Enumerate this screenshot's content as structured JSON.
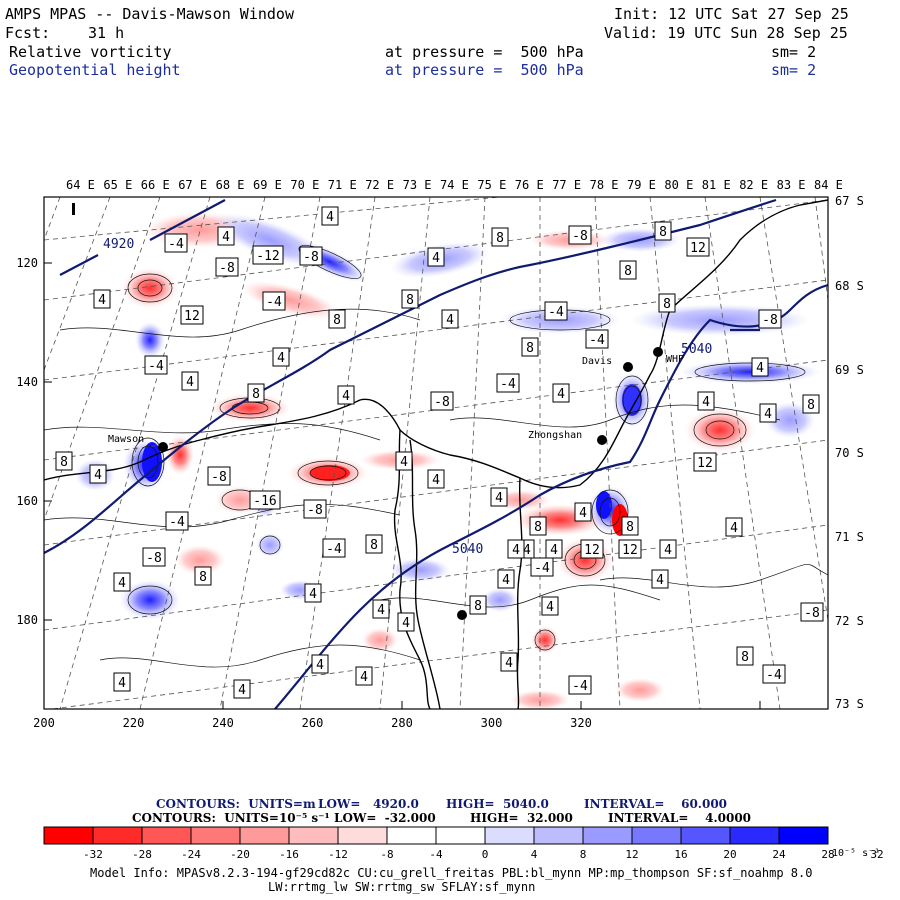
{
  "header": {
    "title": "AMPS MPAS -- Davis-Mawson Window",
    "fcst_label": "Fcst:",
    "fcst_value": "31 h",
    "init": "Init: 12 UTC Sat 27 Sep 25",
    "valid": "Valid: 19 UTC Sun 28 Sep 25",
    "field1": {
      "name": "Relative vorticity",
      "level": "at pressure =  500 hPa",
      "smooth": "sm= 2"
    },
    "field2": {
      "name": "Geopotential height",
      "level": "at pressure =  500 hPa",
      "smooth": "sm= 2"
    }
  },
  "map": {
    "top_lon_labels": [
      "64 E",
      "65 E",
      "66 E",
      "67 E",
      "68 E",
      "69 E",
      "70 E",
      "71 E",
      "72 E",
      "73 E",
      "74 E",
      "75 E",
      "76 E",
      "77 E",
      "78 E",
      "79 E",
      "80 E",
      "81 E",
      "82 E",
      "83 E",
      "84 E"
    ],
    "right_lat_labels": [
      "67 S",
      "68 S",
      "69 S",
      "70 S",
      "71 S",
      "72 S",
      "73 S"
    ],
    "bottom_x_labels": [
      "200",
      "220",
      "240",
      "260",
      "280",
      "300",
      "320"
    ],
    "left_y_labels": [
      "120",
      "140",
      "160",
      "180"
    ],
    "stations": [
      {
        "name": "Davis"
      },
      {
        "name": "Mawson"
      },
      {
        "name": "Zhongshan"
      },
      {
        "name": "WHP"
      }
    ],
    "height_labels": [
      "4920",
      "5040",
      "5040"
    ],
    "vort_labels": [
      "4",
      "-4",
      "4",
      "8",
      "-8",
      "8",
      "12",
      "-8",
      "-12",
      "-8",
      "4",
      "8",
      "4",
      "12",
      "-4",
      "8",
      "8",
      "4",
      "-4",
      "8",
      "-8",
      "-4",
      "4",
      "8",
      "4",
      "4",
      "-8",
      "-4",
      "8",
      "-4",
      "4",
      "4",
      "4",
      "8",
      "4",
      "8",
      "4",
      "-8",
      "-4",
      "-16",
      "-8",
      "4",
      "4",
      "4",
      "8",
      "4",
      "8",
      "-8",
      "8",
      "-4",
      "8",
      "4",
      "4",
      "4",
      "8",
      "4",
      "-4",
      "-4",
      "4",
      "4",
      "4",
      "4",
      "4",
      "4",
      "4",
      "4",
      "-4",
      "4",
      "-4",
      "8",
      "12",
      "-8",
      "4",
      "4",
      "12",
      "12",
      "4"
    ]
  },
  "legend": {
    "line1": {
      "contours": "CONTOURS:  UNITS=m",
      "low": "LOW=   4920.0",
      "high": "HIGH=  5040.0",
      "interval": "INTERVAL=    60.000"
    },
    "line2": {
      "contours": "CONTOURS:  UNITS=10⁻⁵ s⁻¹",
      "low": "LOW=  -32.000",
      "high": "HIGH=  32.000",
      "interval": "INTERVAL=    4.0000"
    },
    "scale_labels": [
      "-32",
      "-28",
      "-24",
      "-20",
      "-16",
      "-12",
      "-8",
      "-4",
      "0",
      "4",
      "8",
      "12",
      "16",
      "20",
      "24",
      "28",
      "32"
    ],
    "scale_unit": "10⁻⁵ s⁻¹",
    "colors": [
      "#ff0000",
      "#ff2a2a",
      "#ff5656",
      "#ff7878",
      "#ff9a9a",
      "#ffbcbc",
      "#ffdcdc",
      "#ffffff",
      "#ffffff",
      "#dcdcff",
      "#bcbcff",
      "#9a9aff",
      "#7878ff",
      "#5656ff",
      "#2a2aff",
      "#0000ff"
    ]
  },
  "footer": {
    "model_info": "Model Info: MPASv8.2.3-194-gf29cd82c CU:cu_grell_freitas PBL:bl_mynn MP:mp_thompson SF:sf_noahmp 8.0",
    "physics": "LW:rrtmg_lw SW:rrtmg_sw SFLAY:sf_mynn"
  }
}
